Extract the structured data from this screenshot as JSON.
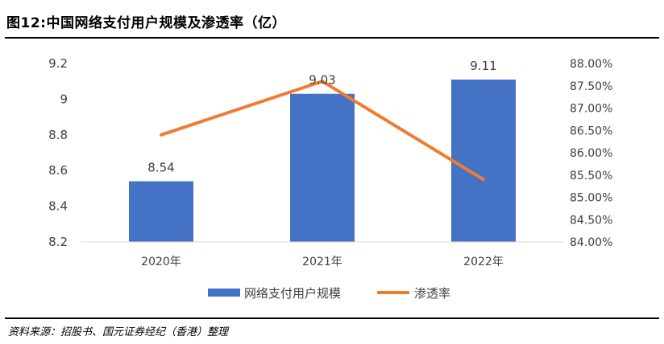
{
  "figure": {
    "title": "图12:中国网络支付用户规模及渗透率（亿）",
    "source": "资料来源：招股书、国元证券经纪（香港）整理"
  },
  "chart_data": {
    "type": "bar",
    "categories": [
      "2020年",
      "2021年",
      "2022年"
    ],
    "series": [
      {
        "name": "网络支付用户规模",
        "type": "bar",
        "axis": "left",
        "values": [
          8.54,
          9.03,
          9.11
        ],
        "data_labels": [
          "8.54",
          "9.03",
          "9.11"
        ],
        "color": "#4472C4"
      },
      {
        "name": "渗透率",
        "type": "line",
        "axis": "right",
        "values": [
          86.4,
          87.6,
          85.4
        ],
        "color": "#ED7D31"
      }
    ],
    "y_left": {
      "ylim": [
        8.2,
        9.2
      ],
      "ticks": [
        8.2,
        8.4,
        8.6,
        8.8,
        9.0,
        9.2
      ],
      "tick_labels": [
        "8.2",
        "8.4",
        "8.6",
        "8.8",
        "9",
        "9.2"
      ]
    },
    "y_right": {
      "ylim": [
        84.0,
        88.0
      ],
      "ticks": [
        84.0,
        84.5,
        85.0,
        85.5,
        86.0,
        86.5,
        87.0,
        87.5,
        88.0
      ],
      "tick_labels": [
        "84.00%",
        "84.50%",
        "85.00%",
        "85.50%",
        "86.00%",
        "86.50%",
        "87.00%",
        "87.50%",
        "88.00%"
      ]
    },
    "grid": false,
    "legend_position": "bottom"
  }
}
